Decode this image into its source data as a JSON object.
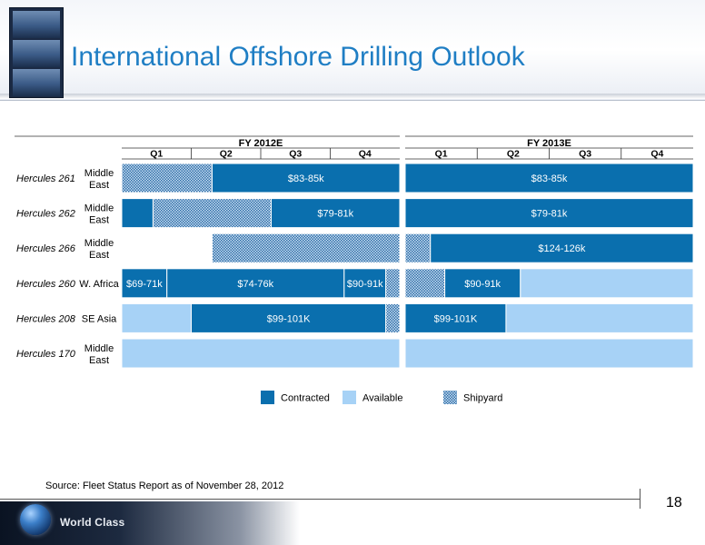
{
  "title": "International Offshore Drilling Outlook",
  "source": "Source: Fleet Status Report as of November 28, 2012",
  "page_number": "18",
  "footer_brand": "World Class",
  "colors": {
    "contracted": "#0a6fae",
    "available": "#a7d2f6",
    "shipyard": "#2f6fa8",
    "title": "#1f7ec4"
  },
  "chart_data": {
    "type": "gantt",
    "periods": [
      {
        "label": "FY 2012E",
        "quarters": [
          "Q1",
          "Q2",
          "Q3",
          "Q4"
        ]
      },
      {
        "label": "FY 2013E",
        "quarters": [
          "Q1",
          "Q2",
          "Q3",
          "Q4"
        ]
      }
    ],
    "legend": [
      {
        "key": "contracted",
        "label": "Contracted"
      },
      {
        "key": "available",
        "label": "Available"
      },
      {
        "key": "shipyard",
        "label": "Shipyard"
      }
    ],
    "rigs": [
      {
        "name": "Hercules 261",
        "region": [
          "Middle",
          "East"
        ],
        "segments": [
          {
            "period": 0,
            "start": 0.0,
            "end": 1.3,
            "status": "shipyard",
            "label": ""
          },
          {
            "period": 0,
            "start": 1.3,
            "end": 4.0,
            "status": "contracted",
            "label": "$83-85k"
          },
          {
            "period": 1,
            "start": 0.0,
            "end": 4.0,
            "status": "contracted",
            "label": "$83-85k"
          }
        ]
      },
      {
        "name": "Hercules 262",
        "region": [
          "Middle",
          "East"
        ],
        "segments": [
          {
            "period": 0,
            "start": 0.0,
            "end": 0.45,
            "status": "contracted",
            "label": ""
          },
          {
            "period": 0,
            "start": 0.45,
            "end": 2.15,
            "status": "shipyard",
            "label": ""
          },
          {
            "period": 0,
            "start": 2.15,
            "end": 4.0,
            "status": "contracted",
            "label": "$79-81k"
          },
          {
            "period": 1,
            "start": 0.0,
            "end": 4.0,
            "status": "contracted",
            "label": "$79-81k"
          }
        ]
      },
      {
        "name": "Hercules 266",
        "region": [
          "Middle",
          "East"
        ],
        "segments": [
          {
            "period": 0,
            "start": 1.3,
            "end": 4.0,
            "status": "shipyard",
            "label": ""
          },
          {
            "period": 1,
            "start": 0.0,
            "end": 0.35,
            "status": "shipyard",
            "label": ""
          },
          {
            "period": 1,
            "start": 0.35,
            "end": 4.0,
            "status": "contracted",
            "label": "$124-126k"
          }
        ]
      },
      {
        "name": "Hercules 260",
        "region": [
          "W. Africa"
        ],
        "segments": [
          {
            "period": 0,
            "start": 0.0,
            "end": 0.65,
            "status": "contracted",
            "label": "$69-71k"
          },
          {
            "period": 0,
            "start": 0.65,
            "end": 3.2,
            "status": "contracted",
            "label": "$74-76k"
          },
          {
            "period": 0,
            "start": 3.2,
            "end": 3.8,
            "status": "contracted",
            "label": "$90-91k"
          },
          {
            "period": 0,
            "start": 3.8,
            "end": 4.0,
            "status": "shipyard",
            "label": ""
          },
          {
            "period": 1,
            "start": 0.0,
            "end": 0.55,
            "status": "shipyard",
            "label": ""
          },
          {
            "period": 1,
            "start": 0.55,
            "end": 1.6,
            "status": "contracted",
            "label": "$90-91k"
          },
          {
            "period": 1,
            "start": 1.6,
            "end": 4.0,
            "status": "available",
            "label": ""
          }
        ]
      },
      {
        "name": "Hercules 208",
        "region": [
          "SE Asia"
        ],
        "segments": [
          {
            "period": 0,
            "start": 0.0,
            "end": 1.0,
            "status": "available",
            "label": ""
          },
          {
            "period": 0,
            "start": 1.0,
            "end": 3.8,
            "status": "contracted",
            "label": "$99-101K"
          },
          {
            "period": 0,
            "start": 3.8,
            "end": 4.0,
            "status": "shipyard",
            "label": ""
          },
          {
            "period": 1,
            "start": 0.0,
            "end": 1.4,
            "status": "contracted",
            "label": "$99-101K"
          },
          {
            "period": 1,
            "start": 1.4,
            "end": 4.0,
            "status": "available",
            "label": ""
          }
        ]
      },
      {
        "name": "Hercules 170",
        "region": [
          "Middle",
          "East"
        ],
        "segments": [
          {
            "period": 0,
            "start": 0.0,
            "end": 4.0,
            "status": "available",
            "label": ""
          },
          {
            "period": 1,
            "start": 0.0,
            "end": 4.0,
            "status": "available",
            "label": ""
          }
        ]
      }
    ]
  }
}
